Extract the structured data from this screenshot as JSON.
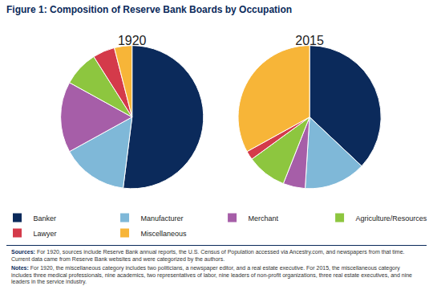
{
  "title": "Figure 1: Composition of Reserve Bank Boards by Occupation",
  "chart_data": [
    {
      "type": "pie",
      "title": "1920",
      "categories": [
        "Banker",
        "Manufacturer",
        "Merchant",
        "Agriculture/Resources",
        "Lawyer",
        "Miscellaneous"
      ],
      "values": [
        52,
        15,
        16,
        8,
        5,
        4
      ],
      "colors": [
        "#0b2a5b",
        "#7fb8d8",
        "#a65ea8",
        "#8dc63f",
        "#d43a4a",
        "#f7b538"
      ],
      "legend": "bottom"
    },
    {
      "type": "pie",
      "title": "2015",
      "categories": [
        "Banker",
        "Manufacturer",
        "Merchant",
        "Agriculture/Resources",
        "Lawyer",
        "Miscellaneous"
      ],
      "values": [
        37,
        14,
        5,
        9,
        2,
        33
      ],
      "colors": [
        "#0b2a5b",
        "#7fb8d8",
        "#a65ea8",
        "#8dc63f",
        "#d43a4a",
        "#f7b538"
      ],
      "legend": "bottom"
    }
  ],
  "sources": {
    "label": "Sources:",
    "text": "For 1920, sources include Reserve Bank annual reports, the U.S. Census of Population accessed via Ancestry.com, and newspapers from that time. Current data came from Reserve Bank websites and were categorized by the authors."
  },
  "notes": {
    "label": "Notes:",
    "text": "For 1920, the miscellaneous category includes two politicians, a newspaper editor, and a real estate executive. For 2015, the miscellaneous category includes three medical professionals, nine academics, two representatives of labor, nine leaders of non-profit organizations, three real estate executives, and nine leaders in the service industry."
  }
}
